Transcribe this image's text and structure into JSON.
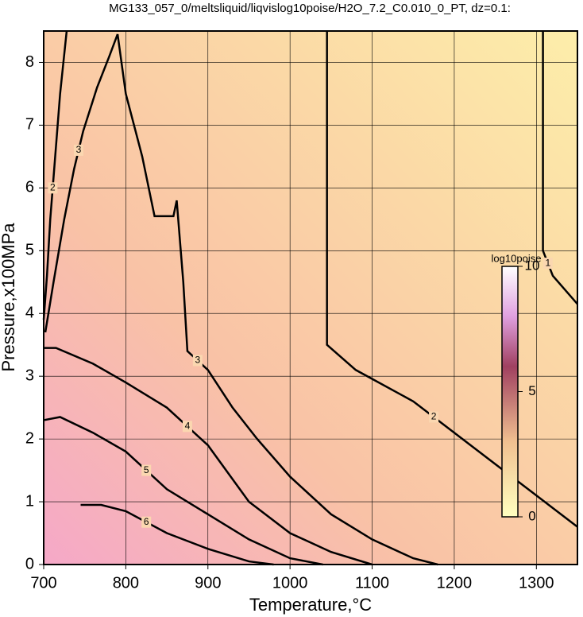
{
  "chart_data": {
    "type": "contour",
    "title": "MG133_057_0/meltsliquid/liqvislog10poise/H2O_7.2_C0.010_0_PT, dz=0.1:",
    "xlabel": "Temperature,°C",
    "ylabel": "Pressure,x100MPa",
    "xlim": [
      700,
      1350
    ],
    "ylim": [
      0,
      8.5
    ],
    "xticks": [
      700,
      800,
      900,
      1000,
      1100,
      1200,
      1300
    ],
    "yticks": [
      0,
      1,
      2,
      3,
      4,
      5,
      6,
      7,
      8
    ],
    "grid": true,
    "contours": [
      {
        "level": 1,
        "x": [
          1308,
          1308,
          1320,
          1350
        ],
        "y": [
          8.5,
          5.0,
          4.6,
          4.15
        ]
      },
      {
        "level": 2,
        "x": [
          1045,
          1045,
          1080,
          1150,
          1200,
          1250,
          1300,
          1350
        ],
        "y": [
          8.5,
          3.5,
          3.1,
          2.6,
          2.1,
          1.6,
          1.1,
          0.6
        ]
      },
      {
        "level": 2,
        "x": [
          728,
          720,
          714,
          708,
          704,
          700
        ],
        "y": [
          8.5,
          7.5,
          6.5,
          5.5,
          4.6,
          3.9
        ]
      },
      {
        "level": 3,
        "x": [
          702,
          712,
          725,
          737,
          748,
          765,
          780,
          790
        ],
        "y": [
          3.7,
          4.5,
          5.5,
          6.3,
          6.9,
          7.6,
          8.1,
          8.45
        ]
      },
      {
        "level": 3,
        "x": [
          790,
          800,
          820,
          835,
          858,
          862,
          870,
          875,
          900,
          930,
          960,
          1000,
          1050,
          1100,
          1150,
          1180
        ],
        "y": [
          8.45,
          7.5,
          6.5,
          5.55,
          5.55,
          5.8,
          4.5,
          3.4,
          3.1,
          2.5,
          2.0,
          1.4,
          0.8,
          0.4,
          0.1,
          0
        ]
      },
      {
        "level": 4,
        "x": [
          700,
          715,
          760,
          800,
          850,
          900,
          950,
          1000,
          1050,
          1100
        ],
        "y": [
          3.45,
          3.45,
          3.2,
          2.9,
          2.5,
          1.9,
          1.0,
          0.5,
          0.2,
          0
        ]
      },
      {
        "level": 5,
        "x": [
          700,
          720,
          760,
          800,
          850,
          900,
          950,
          1000,
          1040
        ],
        "y": [
          2.3,
          2.35,
          2.1,
          1.8,
          1.2,
          0.8,
          0.4,
          0.1,
          0
        ]
      },
      {
        "level": 6,
        "x": [
          745,
          770,
          800,
          850,
          900,
          950,
          980
        ],
        "y": [
          0.95,
          0.95,
          0.85,
          0.5,
          0.25,
          0.05,
          0
        ]
      }
    ],
    "colorbar": {
      "label": "log10poise",
      "lim": [
        0,
        10
      ],
      "ticks": [
        0,
        5,
        10
      ]
    }
  }
}
